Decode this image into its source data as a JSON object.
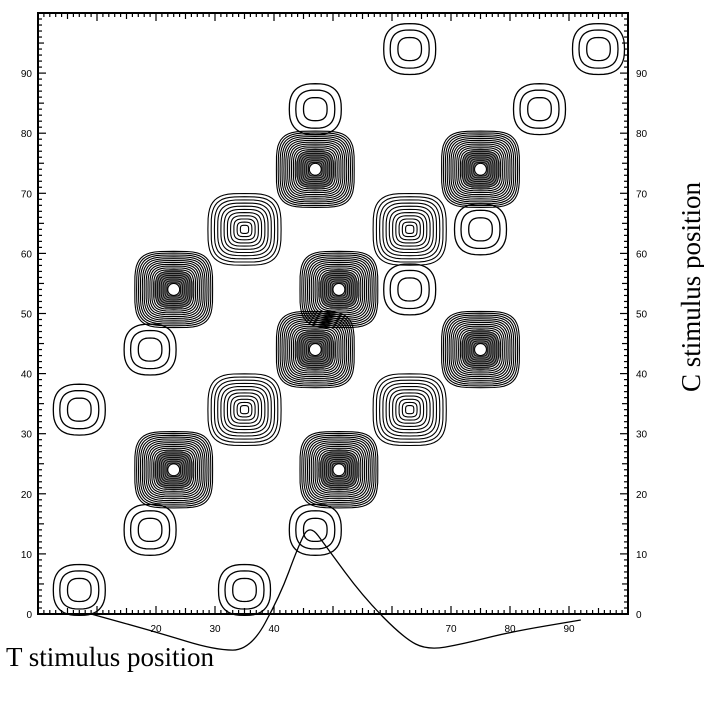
{
  "chart_data": {
    "type": "contour",
    "xlabel": "T stimulus position",
    "ylabel": "C stimulus position",
    "xlim": [
      0,
      100
    ],
    "ylim": [
      0,
      100
    ],
    "x_ticks": [
      20,
      30,
      40,
      70,
      80,
      90
    ],
    "y_ticks": [
      0,
      10,
      20,
      30,
      40,
      50,
      60,
      70,
      80,
      90
    ],
    "peaks": [
      {
        "x": 7,
        "y": 4,
        "level": "weak"
      },
      {
        "x": 19,
        "y": 14,
        "level": "weak"
      },
      {
        "x": 35,
        "y": 4,
        "level": "weak"
      },
      {
        "x": 47,
        "y": 14,
        "level": "weak"
      },
      {
        "x": 7,
        "y": 34,
        "level": "weak"
      },
      {
        "x": 19,
        "y": 44,
        "level": "weak"
      },
      {
        "x": 63,
        "y": 54,
        "level": "weak"
      },
      {
        "x": 75,
        "y": 64,
        "level": "weak"
      },
      {
        "x": 47,
        "y": 84,
        "level": "weak"
      },
      {
        "x": 63,
        "y": 94,
        "level": "weak"
      },
      {
        "x": 85,
        "y": 84,
        "level": "weak"
      },
      {
        "x": 95,
        "y": 94,
        "level": "weak"
      },
      {
        "x": 35,
        "y": 34,
        "level": "medium"
      },
      {
        "x": 63,
        "y": 34,
        "level": "medium"
      },
      {
        "x": 35,
        "y": 64,
        "level": "medium"
      },
      {
        "x": 63,
        "y": 64,
        "level": "medium"
      },
      {
        "x": 23,
        "y": 24,
        "level": "strong"
      },
      {
        "x": 51,
        "y": 24,
        "level": "strong"
      },
      {
        "x": 47,
        "y": 44,
        "level": "strong"
      },
      {
        "x": 75,
        "y": 44,
        "level": "strong"
      },
      {
        "x": 23,
        "y": 54,
        "level": "strong"
      },
      {
        "x": 51,
        "y": 54,
        "level": "strong"
      },
      {
        "x": 47,
        "y": 74,
        "level": "strong"
      },
      {
        "x": 75,
        "y": 74,
        "level": "strong"
      }
    ],
    "profile_curve": [
      [
        9,
        0
      ],
      [
        20,
        -3
      ],
      [
        30,
        -6
      ],
      [
        36,
        -6
      ],
      [
        41,
        3
      ],
      [
        44,
        11
      ],
      [
        46,
        15
      ],
      [
        49,
        11
      ],
      [
        55,
        3
      ],
      [
        62,
        -4
      ],
      [
        66,
        -6
      ],
      [
        72,
        -5
      ],
      [
        80,
        -3
      ],
      [
        92,
        -1
      ]
    ]
  }
}
